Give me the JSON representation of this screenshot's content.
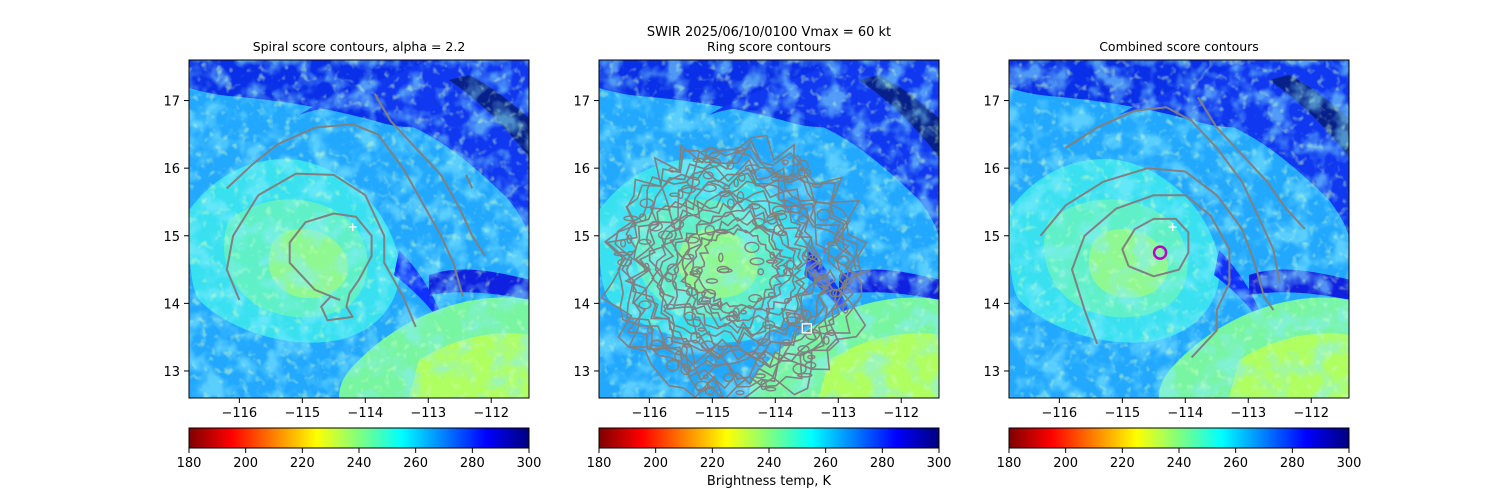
{
  "figure": {
    "suptitle_line1": "SWIR  2025/06/10/0100    Vmax = 60 kt",
    "colorbar_label": "Brightness temp, K"
  },
  "chart_data": [
    {
      "type": "heatmap",
      "title": "Spiral score contours, alpha =  2.2",
      "xlim": [
        -116.8,
        -111.4
      ],
      "ylim": [
        12.6,
        17.6
      ],
      "xticks": [
        "−116",
        "−115",
        "−114",
        "−113",
        "−112"
      ],
      "xtick_values": [
        -116,
        -115,
        -114,
        -113,
        -112
      ],
      "yticks": [
        "13",
        "14",
        "15",
        "16",
        "17"
      ],
      "ytick_values": [
        13,
        14,
        15,
        16,
        17
      ],
      "markers": [
        {
          "kind": "plus",
          "x": -114.2,
          "y": 15.13,
          "color": "#ffffff"
        }
      ],
      "contours": [
        {
          "color": "#808080",
          "points": [
            [
              -114.4,
              14.05
            ],
            [
              -114.8,
              14.2
            ],
            [
              -115.2,
              14.6
            ],
            [
              -115.2,
              14.9
            ],
            [
              -114.95,
              15.2
            ],
            [
              -114.5,
              15.33
            ],
            [
              -114.15,
              15.28
            ],
            [
              -113.9,
              15.0
            ],
            [
              -113.9,
              14.7
            ],
            [
              -114.1,
              14.35
            ],
            [
              -114.25,
              14.15
            ],
            [
              -114.3,
              13.95
            ],
            [
              -114.2,
              13.8
            ],
            [
              -114.6,
              13.75
            ],
            [
              -114.7,
              13.95
            ],
            [
              -114.55,
              14.1
            ],
            [
              -114.4,
              14.05
            ]
          ]
        },
        {
          "color": "#808080",
          "points": [
            [
              -116.0,
              14.05
            ],
            [
              -116.2,
              14.5
            ],
            [
              -116.1,
              15.0
            ],
            [
              -115.7,
              15.6
            ],
            [
              -115.1,
              15.92
            ],
            [
              -114.5,
              15.9
            ],
            [
              -114.0,
              15.6
            ],
            [
              -113.7,
              15.0
            ],
            [
              -113.7,
              14.6
            ],
            [
              -113.4,
              14.1
            ],
            [
              -113.2,
              13.65
            ]
          ]
        },
        {
          "color": "#808080",
          "points": [
            [
              -116.2,
              15.7
            ],
            [
              -115.8,
              16.05
            ],
            [
              -115.4,
              16.35
            ],
            [
              -114.8,
              16.6
            ],
            [
              -114.2,
              16.65
            ],
            [
              -113.8,
              16.5
            ],
            [
              -113.4,
              16.0
            ],
            [
              -113.1,
              15.5
            ],
            [
              -112.8,
              15.0
            ],
            [
              -112.6,
              14.6
            ],
            [
              -112.45,
              14.1
            ]
          ]
        },
        {
          "color": "#808080",
          "points": [
            [
              -113.85,
              17.1
            ],
            [
              -113.6,
              16.7
            ],
            [
              -113.2,
              16.3
            ],
            [
              -112.8,
              15.9
            ],
            [
              -112.5,
              15.4
            ],
            [
              -112.3,
              15.0
            ],
            [
              -112.1,
              14.7
            ]
          ]
        },
        {
          "color": "#808080",
          "points": [
            [
              -112.4,
              15.9
            ],
            [
              -112.3,
              15.7
            ]
          ]
        }
      ]
    },
    {
      "type": "heatmap",
      "title": "Ring score contours",
      "xlim": [
        -116.8,
        -111.4
      ],
      "ylim": [
        12.6,
        17.6
      ],
      "xticks": [
        "−116",
        "−115",
        "−114",
        "−113",
        "−112"
      ],
      "xtick_values": [
        -116,
        -115,
        -114,
        -113,
        -112
      ],
      "yticks": [
        "13",
        "14",
        "15",
        "16",
        "17"
      ],
      "ytick_values": [
        13,
        14,
        15,
        16,
        17
      ],
      "markers": [
        {
          "kind": "square",
          "x": -113.5,
          "y": 13.63,
          "color": "#ffffff"
        }
      ],
      "ring_region": {
        "center_x": -114.6,
        "center_y": 14.5,
        "radius_deg": 2.0
      }
    },
    {
      "type": "heatmap",
      "title": "Combined score contours",
      "xlim": [
        -116.8,
        -111.4
      ],
      "ylim": [
        12.6,
        17.6
      ],
      "xticks": [
        "−116",
        "−115",
        "−114",
        "−113",
        "−112"
      ],
      "xtick_values": [
        -116,
        -115,
        -114,
        -113,
        -112
      ],
      "yticks": [
        "13",
        "14",
        "15",
        "16",
        "17"
      ],
      "ytick_values": [
        13,
        14,
        15,
        16,
        17
      ],
      "markers": [
        {
          "kind": "plus",
          "x": -114.2,
          "y": 15.13,
          "color": "#ffffff"
        },
        {
          "kind": "circle",
          "x": -114.4,
          "y": 14.75,
          "color": "#c000c0"
        }
      ],
      "contours": [
        {
          "color": "#808080",
          "points": [
            [
              -114.9,
              14.55
            ],
            [
              -115.0,
              14.8
            ],
            [
              -114.8,
              15.1
            ],
            [
              -114.5,
              15.25
            ],
            [
              -114.15,
              15.25
            ],
            [
              -113.95,
              15.05
            ],
            [
              -113.95,
              14.75
            ],
            [
              -114.1,
              14.5
            ],
            [
              -114.5,
              14.4
            ],
            [
              -114.9,
              14.55
            ]
          ]
        },
        {
          "color": "#808080",
          "points": [
            [
              -115.4,
              13.4
            ],
            [
              -115.6,
              13.9
            ],
            [
              -115.8,
              14.5
            ],
            [
              -115.6,
              15.0
            ],
            [
              -115.1,
              15.4
            ],
            [
              -114.5,
              15.6
            ],
            [
              -114.0,
              15.6
            ],
            [
              -113.6,
              15.3
            ],
            [
              -113.3,
              14.8
            ],
            [
              -113.3,
              14.3
            ],
            [
              -113.5,
              13.9
            ],
            [
              -113.5,
              13.6
            ],
            [
              -113.7,
              13.4
            ],
            [
              -113.9,
              13.2
            ]
          ]
        },
        {
          "color": "#808080",
          "points": [
            [
              -116.3,
              15.0
            ],
            [
              -115.9,
              15.45
            ],
            [
              -115.3,
              15.8
            ],
            [
              -114.6,
              16.0
            ],
            [
              -114.0,
              15.95
            ],
            [
              -113.5,
              15.6
            ],
            [
              -113.1,
              15.1
            ],
            [
              -112.9,
              14.6
            ],
            [
              -112.75,
              14.1
            ],
            [
              -112.6,
              13.9
            ]
          ]
        },
        {
          "color": "#808080",
          "points": [
            [
              -115.9,
              16.3
            ],
            [
              -115.4,
              16.6
            ],
            [
              -114.8,
              16.85
            ],
            [
              -114.3,
              16.9
            ],
            [
              -113.9,
              16.7
            ],
            [
              -113.5,
              16.3
            ],
            [
              -113.1,
              15.8
            ],
            [
              -112.8,
              15.2
            ],
            [
              -112.6,
              14.8
            ],
            [
              -112.5,
              14.3
            ]
          ]
        },
        {
          "color": "#808080",
          "points": [
            [
              -113.8,
              17.05
            ],
            [
              -113.5,
              16.6
            ],
            [
              -113.1,
              16.2
            ],
            [
              -112.7,
              15.8
            ],
            [
              -112.4,
              15.4
            ],
            [
              -112.1,
              15.1
            ]
          ]
        }
      ]
    }
  ],
  "colorbar": {
    "min": 180,
    "max": 300,
    "ticks": [
      "180",
      "200",
      "220",
      "240",
      "260",
      "280",
      "300"
    ],
    "tick_values": [
      180,
      200,
      220,
      240,
      260,
      280,
      300
    ],
    "stops": [
      "#800000",
      "#ff0000",
      "#ff8000",
      "#ffff00",
      "#80ff80",
      "#00ffff",
      "#0080ff",
      "#0000ff",
      "#000080"
    ]
  },
  "colors": {
    "contour": "#808080",
    "best_center": "#c000c0",
    "marker": "#ffffff"
  }
}
